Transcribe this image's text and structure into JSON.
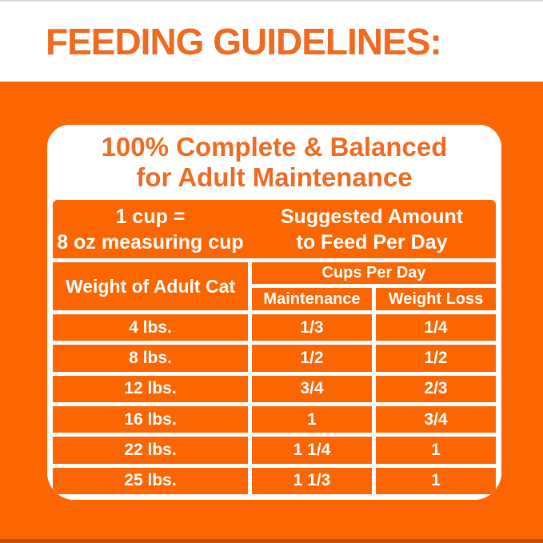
{
  "page": {
    "title": "FEEDING GUIDELINES:"
  },
  "panel": {
    "heading": "100% Complete & Balanced\nfor Adult Maintenance",
    "cup_note": "1 cup =\n8 oz measuring cup",
    "suggested_amount": "Suggested Amount\nto Feed Per Day",
    "weight_header": "Weight of Adult Cat",
    "cups_header": "Cups Per Day",
    "col_maintenance": "Maintenance",
    "col_weight_loss": "Weight Loss"
  },
  "table": {
    "rows": [
      {
        "weight": "4 lbs.",
        "maintenance": "1/3",
        "weight_loss": "1/4"
      },
      {
        "weight": "8 lbs.",
        "maintenance": "1/2",
        "weight_loss": "1/2"
      },
      {
        "weight": "12 lbs.",
        "maintenance": "3/4",
        "weight_loss": "2/3"
      },
      {
        "weight": "16 lbs.",
        "maintenance": "1",
        "weight_loss": "3/4"
      },
      {
        "weight": "22 lbs.",
        "maintenance": "1 1/4",
        "weight_loss": "1"
      },
      {
        "weight": "25 lbs.",
        "maintenance": "1 1/3",
        "weight_loss": "1"
      }
    ]
  },
  "colors": {
    "orange_background": "#FB6502",
    "orange_text": "#EE6B21",
    "white": "#FFFFFF"
  }
}
